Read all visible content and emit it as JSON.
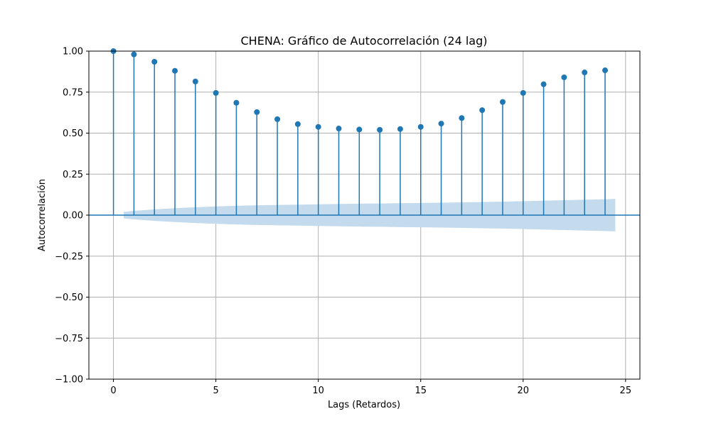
{
  "chart_data": {
    "type": "stem",
    "title": "CHENA: Gráfico de Autocorrelación (24 lag)",
    "xlabel": "Lags (Retardos)",
    "ylabel": "Autocorrelación",
    "xlim": [
      -1.2,
      25.7
    ],
    "ylim": [
      -1.0,
      1.0
    ],
    "x_ticks": [
      0,
      5,
      10,
      15,
      20,
      25
    ],
    "x_tick_labels": [
      "0",
      "5",
      "10",
      "15",
      "20",
      "25"
    ],
    "y_ticks": [
      -1.0,
      -0.75,
      -0.5,
      -0.25,
      0.0,
      0.25,
      0.5,
      0.75,
      1.0
    ],
    "y_tick_labels": [
      "−1.00",
      "−0.75",
      "−0.50",
      "−0.25",
      "0.00",
      "0.25",
      "0.50",
      "0.75",
      "1.00"
    ],
    "grid": true,
    "lags": [
      0,
      1,
      2,
      3,
      4,
      5,
      6,
      7,
      8,
      9,
      10,
      11,
      12,
      13,
      14,
      15,
      16,
      17,
      18,
      19,
      20,
      21,
      22,
      23,
      24
    ],
    "values": [
      1.0,
      0.98,
      0.935,
      0.88,
      0.815,
      0.745,
      0.685,
      0.628,
      0.585,
      0.555,
      0.538,
      0.528,
      0.522,
      0.52,
      0.525,
      0.538,
      0.558,
      0.592,
      0.64,
      0.69,
      0.745,
      0.798,
      0.84,
      0.87,
      0.883
    ],
    "confidence_band": {
      "x": [
        0.5,
        1,
        2,
        3,
        4,
        5,
        6,
        7,
        8,
        9,
        10,
        11,
        12,
        13,
        14,
        15,
        16,
        17,
        18,
        19,
        20,
        21,
        22,
        23,
        24,
        24.5
      ],
      "upper": [
        0.02,
        0.026,
        0.035,
        0.042,
        0.048,
        0.053,
        0.057,
        0.06,
        0.062,
        0.064,
        0.066,
        0.068,
        0.07,
        0.071,
        0.073,
        0.074,
        0.076,
        0.078,
        0.08,
        0.082,
        0.085,
        0.088,
        0.091,
        0.094,
        0.097,
        0.099
      ]
    },
    "colors": {
      "stem": "#1f77b4",
      "band": "#c4dbee",
      "grid": "#b0b0b0"
    }
  }
}
